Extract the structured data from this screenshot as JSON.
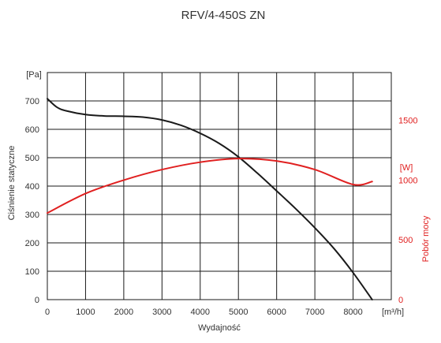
{
  "chart_data": {
    "type": "line",
    "title": "RFV/4-450S ZN",
    "xlabel": "Wydajność",
    "x_unit": "[m³/h]",
    "xlim": [
      0,
      9000
    ],
    "x_ticks": [
      0,
      1000,
      2000,
      3000,
      4000,
      5000,
      6000,
      7000,
      8000
    ],
    "y_left": {
      "label": "Ciśnienie statyczne",
      "unit": "[Pa]",
      "ylim": [
        0,
        800
      ],
      "ticks": [
        0,
        100,
        200,
        300,
        400,
        500,
        600,
        700
      ]
    },
    "y_right": {
      "label": "Pobór mocy",
      "unit": "[W]",
      "ylim": [
        0,
        1900
      ],
      "ticks": [
        0,
        500,
        1000,
        1500
      ]
    },
    "grid": true,
    "series": [
      {
        "axis": "left",
        "color": "#1a1a1a",
        "x": [
          0,
          250,
          500,
          1000,
          1500,
          2000,
          2500,
          3000,
          3500,
          4000,
          4500,
          5000,
          5500,
          6000,
          6500,
          7000,
          7500,
          8000,
          8500
        ],
        "y": [
          708,
          678,
          665,
          652,
          647,
          646,
          643,
          633,
          614,
          586,
          550,
          503,
          445,
          383,
          320,
          253,
          180,
          95,
          0
        ]
      },
      {
        "axis": "right",
        "color": "#e02020",
        "x": [
          0,
          1000,
          2000,
          3000,
          4000,
          5000,
          6000,
          7000,
          8000,
          8500
        ],
        "y": [
          725,
          888,
          1000,
          1088,
          1150,
          1180,
          1160,
          1088,
          963,
          988
        ]
      }
    ]
  }
}
